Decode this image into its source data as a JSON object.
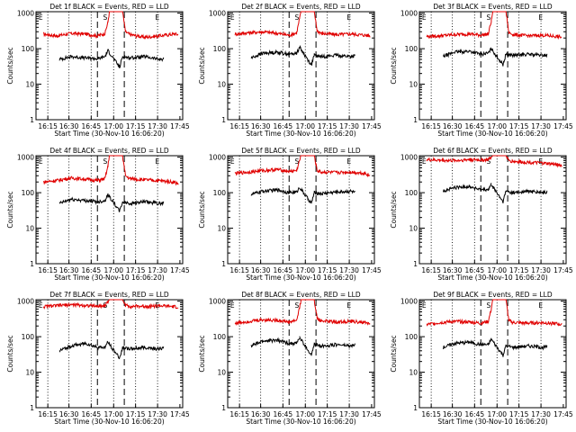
{
  "figure": {
    "x_label": "Start Time (30-Nov-10 16:06:20)",
    "y_label": "Counts/sec",
    "x_tick_labels": [
      "16:15",
      "16:30",
      "16:45",
      "17:00",
      "17:15",
      "17:30",
      "17:45"
    ],
    "y_tick_labels": [
      "1",
      "10",
      "100",
      "1000"
    ]
  },
  "colors": {
    "events": "#000000",
    "lld": "#e00000"
  },
  "chart_data": [
    {
      "type": "line",
      "title": "Det 1f BLACK = Events, RED = LLD",
      "markers": [
        "E",
        "S",
        "E"
      ],
      "xlim": [
        "16:06",
        "17:46"
      ],
      "ylim": [
        1,
        1100
      ],
      "y_scale": "log",
      "grid": false,
      "series": [
        {
          "key": "lld",
          "x": [
            "16:11",
            "16:20",
            "16:30",
            "16:40",
            "16:48",
            "16:53",
            "16:55",
            "16:56",
            "17:00",
            "17:05",
            "17:07",
            "17:10",
            "17:20",
            "17:30",
            "17:40",
            "17:43"
          ],
          "values": [
            260,
            230,
            270,
            260,
            230,
            270,
            550,
            1100,
            1100,
            1100,
            300,
            250,
            210,
            230,
            260,
            250
          ]
        },
        {
          "key": "events",
          "x": [
            "16:22",
            "16:30",
            "16:40",
            "16:48",
            "16:53",
            "16:55",
            "17:03",
            "17:05",
            "17:10",
            "17:20",
            "17:30",
            "17:33"
          ],
          "values": [
            50,
            60,
            55,
            52,
            60,
            90,
            30,
            60,
            55,
            60,
            50,
            52
          ]
        }
      ]
    },
    {
      "type": "line",
      "title": "Det 2f BLACK = Events, RED = LLD",
      "markers": [
        "E",
        "S",
        "E"
      ],
      "xlim": [
        "16:06",
        "17:46"
      ],
      "ylim": [
        1,
        1100
      ],
      "y_scale": "log",
      "grid": false,
      "series": [
        {
          "key": "lld",
          "x": [
            "16:11",
            "16:20",
            "16:30",
            "16:40",
            "16:48",
            "16:53",
            "16:55",
            "16:56",
            "17:00",
            "17:05",
            "17:07",
            "17:10",
            "17:20",
            "17:30",
            "17:40",
            "17:43"
          ],
          "values": [
            260,
            280,
            300,
            270,
            240,
            280,
            700,
            1100,
            1100,
            1100,
            320,
            270,
            250,
            260,
            240,
            230
          ]
        },
        {
          "key": "events",
          "x": [
            "16:22",
            "16:30",
            "16:40",
            "16:48",
            "16:53",
            "16:55",
            "17:03",
            "17:05",
            "17:10",
            "17:20",
            "17:30",
            "17:33"
          ],
          "values": [
            55,
            75,
            80,
            70,
            75,
            110,
            35,
            65,
            60,
            65,
            60,
            62
          ]
        }
      ]
    },
    {
      "type": "line",
      "title": "Det 3f BLACK = Events, RED = LLD",
      "markers": [
        "E",
        "S",
        "E"
      ],
      "xlim": [
        "16:06",
        "17:46"
      ],
      "ylim": [
        1,
        1100
      ],
      "y_scale": "log",
      "grid": false,
      "series": [
        {
          "key": "lld",
          "x": [
            "16:11",
            "16:20",
            "16:30",
            "16:40",
            "16:48",
            "16:53",
            "16:55",
            "16:56",
            "17:00",
            "17:05",
            "17:07",
            "17:10",
            "17:20",
            "17:30",
            "17:40",
            "17:43"
          ],
          "values": [
            220,
            230,
            250,
            260,
            240,
            260,
            600,
            1100,
            1100,
            1100,
            280,
            250,
            230,
            240,
            220,
            210
          ]
        },
        {
          "key": "events",
          "x": [
            "16:22",
            "16:30",
            "16:40",
            "16:48",
            "16:53",
            "16:55",
            "17:03",
            "17:05",
            "17:10",
            "17:20",
            "17:30",
            "17:33"
          ],
          "values": [
            60,
            80,
            85,
            70,
            75,
            100,
            35,
            70,
            65,
            70,
            65,
            66
          ]
        }
      ]
    },
    {
      "type": "line",
      "title": "Det 4f BLACK = Events, RED = LLD",
      "markers": [
        "E",
        "S",
        "E"
      ],
      "xlim": [
        "16:06",
        "17:46"
      ],
      "ylim": [
        1,
        1100
      ],
      "y_scale": "log",
      "grid": false,
      "series": [
        {
          "key": "lld",
          "x": [
            "16:11",
            "16:20",
            "16:30",
            "16:40",
            "16:48",
            "16:53",
            "16:55",
            "16:56",
            "17:00",
            "17:05",
            "17:07",
            "17:10",
            "17:20",
            "17:30",
            "17:40",
            "17:43"
          ],
          "values": [
            200,
            220,
            260,
            240,
            220,
            250,
            550,
            1100,
            1100,
            1100,
            300,
            250,
            230,
            220,
            200,
            180
          ]
        },
        {
          "key": "events",
          "x": [
            "16:22",
            "16:30",
            "16:40",
            "16:48",
            "16:53",
            "16:55",
            "17:03",
            "17:05",
            "17:10",
            "17:20",
            "17:30",
            "17:33"
          ],
          "values": [
            50,
            65,
            60,
            55,
            60,
            90,
            30,
            55,
            50,
            55,
            50,
            52
          ]
        }
      ]
    },
    {
      "type": "line",
      "title": "Det 5f BLACK = Events, RED = LLD",
      "markers": [
        "E",
        "S",
        "E"
      ],
      "xlim": [
        "16:06",
        "17:46"
      ],
      "ylim": [
        1,
        1100
      ],
      "y_scale": "log",
      "grid": false,
      "series": [
        {
          "key": "lld",
          "x": [
            "16:11",
            "16:20",
            "16:30",
            "16:40",
            "16:48",
            "16:53",
            "16:55",
            "16:56",
            "17:00",
            "17:05",
            "17:07",
            "17:10",
            "17:20",
            "17:30",
            "17:40",
            "17:43"
          ],
          "values": [
            350,
            380,
            420,
            450,
            400,
            420,
            800,
            1100,
            1100,
            1100,
            420,
            380,
            370,
            380,
            350,
            300
          ]
        },
        {
          "key": "events",
          "x": [
            "16:22",
            "16:30",
            "16:40",
            "16:48",
            "16:53",
            "16:55",
            "17:03",
            "17:05",
            "17:10",
            "17:20",
            "17:30",
            "17:33"
          ],
          "values": [
            90,
            110,
            120,
            100,
            105,
            140,
            50,
            100,
            95,
            105,
            110,
            100
          ]
        }
      ]
    },
    {
      "type": "line",
      "title": "Det 6f BLACK = Events, RED = LLD",
      "markers": [
        "E",
        "S",
        "E"
      ],
      "xlim": [
        "16:06",
        "17:46"
      ],
      "ylim": [
        1,
        1100
      ],
      "y_scale": "log",
      "grid": false,
      "series": [
        {
          "key": "lld",
          "x": [
            "16:11",
            "16:20",
            "16:30",
            "16:40",
            "16:48",
            "16:53",
            "16:55",
            "16:56",
            "17:00",
            "17:05",
            "17:07",
            "17:10",
            "17:20",
            "17:30",
            "17:40",
            "17:43"
          ],
          "values": [
            850,
            820,
            800,
            860,
            830,
            850,
            1000,
            1100,
            1100,
            1100,
            800,
            760,
            720,
            680,
            620,
            580
          ]
        },
        {
          "key": "events",
          "x": [
            "16:22",
            "16:30",
            "16:40",
            "16:48",
            "16:53",
            "16:55",
            "17:03",
            "17:05",
            "17:10",
            "17:20",
            "17:30",
            "17:33"
          ],
          "values": [
            110,
            140,
            150,
            120,
            120,
            170,
            55,
            110,
            100,
            110,
            100,
            105
          ]
        }
      ]
    },
    {
      "type": "line",
      "title": "Det 7f BLACK = Events, RED = LLD",
      "markers": [
        "E",
        "S",
        "E"
      ],
      "xlim": [
        "16:06",
        "17:46"
      ],
      "ylim": [
        1,
        1100
      ],
      "y_scale": "log",
      "grid": false,
      "series": [
        {
          "key": "lld",
          "x": [
            "16:11",
            "16:20",
            "16:30",
            "16:40",
            "16:48",
            "16:53",
            "16:55",
            "16:56",
            "17:00",
            "17:05",
            "17:07",
            "17:10",
            "17:20",
            "17:30",
            "17:40",
            "17:43"
          ],
          "values": [
            700,
            750,
            800,
            760,
            720,
            760,
            950,
            1100,
            1100,
            1100,
            760,
            720,
            720,
            740,
            700,
            680
          ]
        },
        {
          "key": "events",
          "x": [
            "16:22",
            "16:30",
            "16:40",
            "16:48",
            "16:53",
            "16:55",
            "17:03",
            "17:05",
            "17:10",
            "17:20",
            "17:30",
            "17:33"
          ],
          "values": [
            40,
            55,
            65,
            50,
            50,
            70,
            25,
            50,
            45,
            50,
            45,
            48
          ]
        }
      ]
    },
    {
      "type": "line",
      "title": "Det 8f BLACK = Events, RED = LLD",
      "markers": [
        "E",
        "S",
        "E"
      ],
      "xlim": [
        "16:06",
        "17:46"
      ],
      "ylim": [
        1,
        1100
      ],
      "y_scale": "log",
      "grid": false,
      "series": [
        {
          "key": "lld",
          "x": [
            "16:11",
            "16:20",
            "16:30",
            "16:40",
            "16:48",
            "16:53",
            "16:55",
            "16:56",
            "17:00",
            "17:05",
            "17:07",
            "17:10",
            "17:20",
            "17:30",
            "17:40",
            "17:43"
          ],
          "values": [
            240,
            270,
            300,
            290,
            260,
            290,
            650,
            1100,
            1100,
            1100,
            320,
            280,
            260,
            270,
            250,
            230
          ]
        },
        {
          "key": "events",
          "x": [
            "16:22",
            "16:30",
            "16:40",
            "16:48",
            "16:53",
            "16:55",
            "17:03",
            "17:05",
            "17:10",
            "17:20",
            "17:30",
            "17:33"
          ],
          "values": [
            55,
            75,
            80,
            65,
            65,
            95,
            30,
            60,
            55,
            60,
            55,
            58
          ]
        }
      ]
    },
    {
      "type": "line",
      "title": "Det 9f BLACK = Events, RED = LLD",
      "markers": [
        "E",
        "S",
        "E"
      ],
      "xlim": [
        "16:06",
        "17:46"
      ],
      "ylim": [
        1,
        1100
      ],
      "y_scale": "log",
      "grid": false,
      "series": [
        {
          "key": "lld",
          "x": [
            "16:11",
            "16:20",
            "16:30",
            "16:40",
            "16:48",
            "16:53",
            "16:55",
            "16:56",
            "17:00",
            "17:05",
            "17:07",
            "17:10",
            "17:20",
            "17:30",
            "17:40",
            "17:43"
          ],
          "values": [
            220,
            250,
            270,
            260,
            240,
            270,
            600,
            1100,
            1100,
            1100,
            280,
            250,
            240,
            250,
            230,
            220
          ]
        },
        {
          "key": "events",
          "x": [
            "16:22",
            "16:30",
            "16:40",
            "16:48",
            "16:53",
            "16:55",
            "17:03",
            "17:05",
            "17:10",
            "17:20",
            "17:30",
            "17:33"
          ],
          "values": [
            50,
            65,
            70,
            60,
            60,
            85,
            30,
            55,
            50,
            55,
            50,
            52
          ]
        }
      ]
    }
  ]
}
